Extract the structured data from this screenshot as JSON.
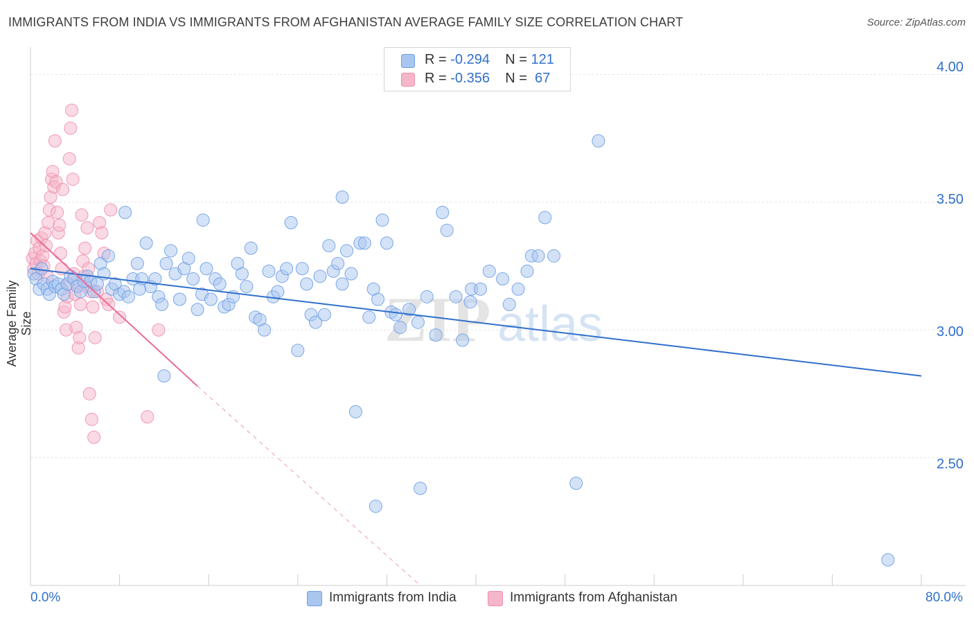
{
  "header": {
    "title": "IMMIGRANTS FROM INDIA VS IMMIGRANTS FROM AFGHANISTAN AVERAGE FAMILY SIZE CORRELATION CHART",
    "source": "Source: ZipAtlas.com"
  },
  "legend": {
    "rows": [
      {
        "r_label": "R = ",
        "r_value": "-0.294",
        "n_label": "N = ",
        "n_value": "121",
        "color": "#a9c6ef"
      },
      {
        "r_label": "R = ",
        "r_value": "-0.356",
        "n_label": "N = ",
        "n_value": " 67",
        "color": "#f5b6c9"
      }
    ]
  },
  "bottom_legend": [
    {
      "label": "Immigrants from India",
      "color": "#a9c6ef"
    },
    {
      "label": "Immigrants from Afghanistan",
      "color": "#f5b6c9"
    }
  ],
  "chart_data": {
    "type": "scatter",
    "title": "IMMIGRANTS FROM INDIA VS IMMIGRANTS FROM AFGHANISTAN AVERAGE FAMILY SIZE CORRELATION CHART",
    "xlabel": "",
    "ylabel": "Average Family Size",
    "xlim": [
      0,
      80
    ],
    "ylim": [
      2.0,
      4.08
    ],
    "x_tick_labels": [
      "0.0%",
      "80.0%"
    ],
    "y_ticks": [
      2.5,
      3.0,
      3.5,
      4.0
    ],
    "y_tick_labels": [
      "2.50",
      "3.00",
      "3.50",
      "4.00"
    ],
    "grid": true,
    "watermark": "ZIPatlas",
    "series": [
      {
        "name": "Immigrants from India",
        "color": "#6d9ee6",
        "fill": "#a9c6ef",
        "trend": {
          "x0": 0.0,
          "y0": 3.24,
          "x1": 80.0,
          "y1": 2.82,
          "dashed_extension": false
        },
        "points": [
          [
            0.3,
            3.22
          ],
          [
            0.5,
            3.2
          ],
          [
            0.8,
            3.16
          ],
          [
            1.0,
            3.24
          ],
          [
            1.2,
            3.18
          ],
          [
            1.5,
            3.16
          ],
          [
            1.7,
            3.14
          ],
          [
            2.0,
            3.19
          ],
          [
            2.2,
            3.17
          ],
          [
            2.5,
            3.18
          ],
          [
            2.8,
            3.16
          ],
          [
            3.0,
            3.14
          ],
          [
            3.3,
            3.18
          ],
          [
            3.6,
            3.21
          ],
          [
            3.9,
            3.2
          ],
          [
            4.2,
            3.17
          ],
          [
            4.5,
            3.15
          ],
          [
            4.8,
            3.19
          ],
          [
            5.1,
            3.21
          ],
          [
            5.4,
            3.19
          ],
          [
            5.7,
            3.15
          ],
          [
            6.0,
            3.18
          ],
          [
            6.3,
            3.26
          ],
          [
            6.6,
            3.22
          ],
          [
            7.0,
            3.29
          ],
          [
            7.3,
            3.16
          ],
          [
            7.6,
            3.18
          ],
          [
            8.0,
            3.14
          ],
          [
            8.4,
            3.15
          ],
          [
            8.8,
            3.13
          ],
          [
            9.2,
            3.2
          ],
          [
            9.6,
            3.26
          ],
          [
            10.0,
            3.2
          ],
          [
            10.4,
            3.34
          ],
          [
            10.8,
            3.17
          ],
          [
            11.2,
            3.2
          ],
          [
            11.5,
            3.13
          ],
          [
            11.8,
            3.1
          ],
          [
            12.2,
            3.26
          ],
          [
            12.6,
            3.31
          ],
          [
            13.0,
            3.22
          ],
          [
            13.4,
            3.12
          ],
          [
            13.8,
            3.24
          ],
          [
            14.2,
            3.28
          ],
          [
            14.6,
            3.2
          ],
          [
            15.0,
            3.08
          ],
          [
            15.4,
            3.14
          ],
          [
            15.8,
            3.24
          ],
          [
            16.2,
            3.12
          ],
          [
            16.6,
            3.2
          ],
          [
            17.0,
            3.18
          ],
          [
            17.4,
            3.09
          ],
          [
            17.8,
            3.1
          ],
          [
            18.2,
            3.13
          ],
          [
            18.6,
            3.26
          ],
          [
            19.0,
            3.22
          ],
          [
            19.4,
            3.17
          ],
          [
            19.8,
            3.32
          ],
          [
            20.2,
            3.05
          ],
          [
            20.6,
            3.04
          ],
          [
            21.0,
            3.0
          ],
          [
            21.4,
            3.23
          ],
          [
            21.8,
            3.13
          ],
          [
            22.2,
            3.15
          ],
          [
            22.6,
            3.21
          ],
          [
            23.0,
            3.24
          ],
          [
            23.4,
            3.42
          ],
          [
            24.0,
            2.92
          ],
          [
            24.4,
            3.24
          ],
          [
            24.8,
            3.18
          ],
          [
            25.2,
            3.06
          ],
          [
            25.6,
            3.03
          ],
          [
            26.0,
            3.21
          ],
          [
            26.4,
            3.06
          ],
          [
            26.8,
            3.33
          ],
          [
            27.2,
            3.23
          ],
          [
            27.6,
            3.26
          ],
          [
            28.0,
            3.18
          ],
          [
            28.4,
            3.31
          ],
          [
            28.8,
            3.22
          ],
          [
            29.2,
            2.68
          ],
          [
            29.6,
            3.34
          ],
          [
            30.0,
            3.34
          ],
          [
            30.4,
            3.05
          ],
          [
            30.8,
            3.16
          ],
          [
            31.2,
            3.12
          ],
          [
            31.6,
            3.43
          ],
          [
            32.0,
            3.34
          ],
          [
            32.4,
            3.07
          ],
          [
            32.8,
            3.06
          ],
          [
            33.2,
            3.01
          ],
          [
            34.0,
            3.08
          ],
          [
            34.8,
            3.03
          ],
          [
            35.6,
            3.13
          ],
          [
            36.4,
            2.98
          ],
          [
            37.0,
            3.46
          ],
          [
            37.4,
            3.39
          ],
          [
            38.2,
            3.13
          ],
          [
            38.8,
            2.96
          ],
          [
            39.6,
            3.16
          ],
          [
            40.4,
            3.16
          ],
          [
            41.2,
            3.23
          ],
          [
            42.4,
            3.2
          ],
          [
            43.0,
            3.1
          ],
          [
            43.8,
            3.16
          ],
          [
            44.6,
            3.23
          ],
          [
            45.0,
            3.29
          ],
          [
            45.6,
            3.29
          ],
          [
            46.2,
            3.44
          ],
          [
            47.0,
            3.29
          ],
          [
            28.0,
            3.52
          ],
          [
            12.0,
            2.82
          ],
          [
            51.0,
            3.74
          ],
          [
            39.5,
            3.11
          ],
          [
            49.0,
            2.4
          ],
          [
            8.5,
            3.46
          ],
          [
            15.5,
            3.43
          ],
          [
            35.0,
            2.38
          ],
          [
            31.0,
            2.31
          ],
          [
            77.0,
            2.1
          ],
          [
            9.8,
            3.16
          ]
        ]
      },
      {
        "name": "Immigrants from Afghanistan",
        "color": "#ee8fad",
        "fill": "#f5b6c9",
        "trend": {
          "x0": 0.0,
          "y0": 3.38,
          "x1": 15.0,
          "y1": 2.78,
          "dashed_to": {
            "x": 35.0,
            "y": 2.0
          }
        },
        "points": [
          [
            0.2,
            3.28
          ],
          [
            0.3,
            3.24
          ],
          [
            0.4,
            3.3
          ],
          [
            0.5,
            3.26
          ],
          [
            0.6,
            3.35
          ],
          [
            0.7,
            3.22
          ],
          [
            0.8,
            3.32
          ],
          [
            0.9,
            3.27
          ],
          [
            1.0,
            3.36
          ],
          [
            1.1,
            3.29
          ],
          [
            1.2,
            3.25
          ],
          [
            1.3,
            3.38
          ],
          [
            1.4,
            3.33
          ],
          [
            1.5,
            3.21
          ],
          [
            1.6,
            3.42
          ],
          [
            1.7,
            3.47
          ],
          [
            1.8,
            3.52
          ],
          [
            1.9,
            3.59
          ],
          [
            2.0,
            3.62
          ],
          [
            2.1,
            3.56
          ],
          [
            2.2,
            3.74
          ],
          [
            2.3,
            3.58
          ],
          [
            2.4,
            3.46
          ],
          [
            2.5,
            3.38
          ],
          [
            2.6,
            3.41
          ],
          [
            2.7,
            3.3
          ],
          [
            2.8,
            3.24
          ],
          [
            2.9,
            3.55
          ],
          [
            3.0,
            3.07
          ],
          [
            3.1,
            3.09
          ],
          [
            3.2,
            3.0
          ],
          [
            3.3,
            3.13
          ],
          [
            3.4,
            3.18
          ],
          [
            3.5,
            3.67
          ],
          [
            3.6,
            3.79
          ],
          [
            3.7,
            3.86
          ],
          [
            3.8,
            3.59
          ],
          [
            3.9,
            3.22
          ],
          [
            4.0,
            3.14
          ],
          [
            4.1,
            3.01
          ],
          [
            4.2,
            3.17
          ],
          [
            4.3,
            2.93
          ],
          [
            4.4,
            2.97
          ],
          [
            4.5,
            3.1
          ],
          [
            4.6,
            3.45
          ],
          [
            4.7,
            3.27
          ],
          [
            4.8,
            3.21
          ],
          [
            4.9,
            3.32
          ],
          [
            5.0,
            3.17
          ],
          [
            5.1,
            3.4
          ],
          [
            5.2,
            3.24
          ],
          [
            5.3,
            2.75
          ],
          [
            5.4,
            3.15
          ],
          [
            5.5,
            2.65
          ],
          [
            5.6,
            3.09
          ],
          [
            5.7,
            2.58
          ],
          [
            5.8,
            2.97
          ],
          [
            6.0,
            3.15
          ],
          [
            6.2,
            3.42
          ],
          [
            6.4,
            3.38
          ],
          [
            6.6,
            3.3
          ],
          [
            6.8,
            3.12
          ],
          [
            7.0,
            3.1
          ],
          [
            7.2,
            3.47
          ],
          [
            8.0,
            3.05
          ],
          [
            10.5,
            2.66
          ],
          [
            11.5,
            3.0
          ]
        ]
      }
    ]
  }
}
